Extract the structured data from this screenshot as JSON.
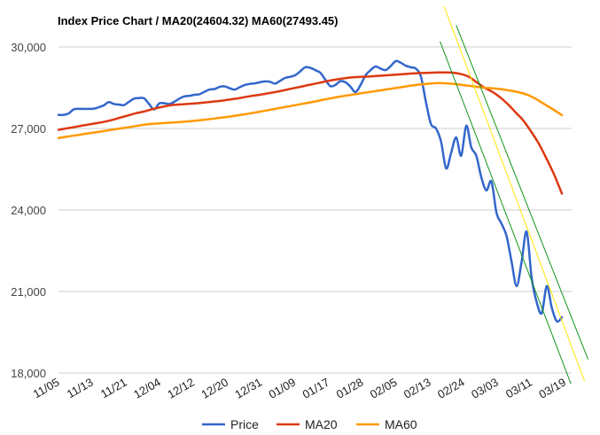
{
  "chart_data": {
    "type": "line",
    "title": "Index Price Chart / MA20(24604.32) MA60(27493.45)",
    "xlabel": "",
    "ylabel": "",
    "ylim": [
      18000,
      30000
    ],
    "yticks": [
      30000,
      27000,
      24000,
      21000,
      18000
    ],
    "ytick_labels": [
      "30,000",
      "27,000",
      "24,000",
      "21,000",
      "18,000"
    ],
    "xtick_labels": [
      "11/05",
      "11/13",
      "11/21",
      "12/04",
      "12/12",
      "12/20",
      "12/31",
      "01/09",
      "01/17",
      "01/28",
      "02/05",
      "02/13",
      "02/24",
      "03/03",
      "03/11",
      "03/19"
    ],
    "grid": true,
    "legend_position": "bottom",
    "colors": {
      "price": "#3366cc",
      "ma20": "#dc3912",
      "ma60": "#ff9900",
      "trend_center": "#ffe600",
      "trend_band": "#109618",
      "grid": "#cccccc"
    },
    "series": [
      {
        "name": "Price",
        "key": "price",
        "values": [
          27500,
          27500,
          27550,
          27700,
          27720,
          27720,
          27720,
          27730,
          27780,
          27850,
          27970,
          27900,
          27880,
          27860,
          27980,
          28100,
          28120,
          28110,
          27900,
          27700,
          27920,
          27930,
          27900,
          27980,
          28100,
          28180,
          28200,
          28240,
          28260,
          28350,
          28430,
          28450,
          28530,
          28550,
          28480,
          28430,
          28520,
          28600,
          28640,
          28660,
          28700,
          28730,
          28720,
          28650,
          28750,
          28860,
          28900,
          28960,
          29100,
          29250,
          29230,
          29150,
          29050,
          28800,
          28560,
          28600,
          28740,
          28700,
          28540,
          28340,
          28600,
          28960,
          29150,
          29280,
          29200,
          29150,
          29300,
          29480,
          29420,
          29310,
          29250,
          29200,
          28900,
          27970,
          27160,
          27000,
          26510,
          25530,
          26100,
          26670,
          26000,
          27100,
          26300,
          26000,
          25200,
          24720,
          25050,
          23900,
          23500,
          23050,
          22100,
          21200,
          22100,
          23200,
          21500,
          20600,
          20200,
          21200,
          20400,
          19900,
          20050
        ]
      },
      {
        "name": "MA20",
        "key": "ma20",
        "values": [
          26950,
          27000,
          27050,
          27100,
          27150,
          27200,
          27250,
          27320,
          27400,
          27480,
          27560,
          27620,
          27700,
          27770,
          27830,
          27870,
          27890,
          27910,
          27930,
          27960,
          27990,
          28020,
          28060,
          28100,
          28150,
          28200,
          28240,
          28290,
          28340,
          28400,
          28460,
          28520,
          28580,
          28640,
          28700,
          28760,
          28810,
          28850,
          28880,
          28900,
          28910,
          28930,
          28950,
          28970,
          28990,
          29010,
          29030,
          29040,
          29050,
          29060,
          29060,
          29050,
          29000,
          28900,
          28700,
          28500,
          28350,
          28150,
          27900,
          27600,
          27300,
          26900,
          26450,
          25900,
          25300,
          24604.32
        ]
      },
      {
        "name": "MA60",
        "key": "ma60",
        "values": [
          26650,
          26700,
          26750,
          26800,
          26850,
          26900,
          26950,
          27000,
          27050,
          27100,
          27150,
          27180,
          27200,
          27220,
          27240,
          27270,
          27300,
          27340,
          27380,
          27420,
          27470,
          27520,
          27570,
          27630,
          27690,
          27750,
          27810,
          27870,
          27930,
          27990,
          28060,
          28120,
          28180,
          28230,
          28280,
          28330,
          28380,
          28430,
          28480,
          28530,
          28580,
          28620,
          28650,
          28670,
          28660,
          28630,
          28590,
          28550,
          28510,
          28480,
          28450,
          28400,
          28340,
          28250,
          28100,
          27900,
          27700,
          27493.45
        ]
      }
    ],
    "trend_channel": {
      "center": [
        [
          0.766,
          31500
        ],
        [
          1.045,
          17700
        ]
      ],
      "upper": [
        [
          0.79,
          30800
        ],
        [
          1.052,
          18500
        ]
      ],
      "lower": [
        [
          0.758,
          30200
        ],
        [
          1.018,
          17600
        ]
      ]
    },
    "legend": [
      "Price",
      "MA20",
      "MA60"
    ]
  }
}
